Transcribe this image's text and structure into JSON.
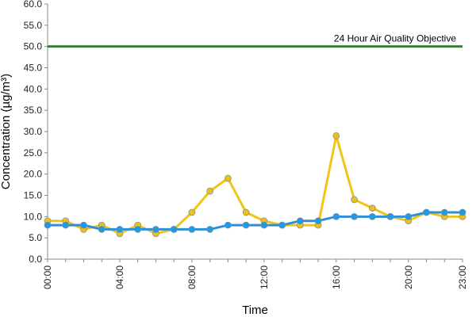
{
  "chart_data": {
    "type": "line",
    "title": "",
    "xlabel": "Time",
    "ylabel": "Concentration (µg/m³)",
    "ylim": [
      0,
      60
    ],
    "yticks": [
      "0.0",
      "5.0",
      "10.0",
      "15.0",
      "20.0",
      "25.0",
      "30.0",
      "35.0",
      "40.0",
      "45.0",
      "50.0",
      "55.0",
      "60.0"
    ],
    "x": [
      "00:00",
      "01:00",
      "02:00",
      "03:00",
      "04:00",
      "05:00",
      "06:00",
      "07:00",
      "08:00",
      "09:00",
      "10:00",
      "11:00",
      "12:00",
      "13:00",
      "14:00",
      "15:00",
      "16:00",
      "17:00",
      "18:00",
      "19:00",
      "20:00",
      "21:00",
      "22:00",
      "23:00"
    ],
    "xtick_labels": [
      "00:00",
      "04:00",
      "08:00",
      "12:00",
      "16:00",
      "20:00",
      "23:00"
    ],
    "grid": false,
    "legend": "none",
    "series": [
      {
        "color": "#f0c419",
        "marker_color": "#e8c020",
        "values": [
          9,
          9,
          7,
          8,
          6,
          8,
          6,
          7,
          11,
          16,
          19,
          11,
          9,
          8,
          8,
          8,
          29,
          14,
          12,
          10,
          9,
          11,
          10,
          10
        ]
      },
      {
        "color": "#2b8fd9",
        "marker_color": "#1e9be8",
        "values": [
          8,
          8,
          8,
          7,
          7,
          7,
          7,
          7,
          7,
          7,
          8,
          8,
          8,
          8,
          9,
          9,
          10,
          10,
          10,
          10,
          10,
          11,
          11,
          11
        ]
      }
    ],
    "reference_line": {
      "value": 50,
      "label": "24 Hour Air Quality Objective",
      "color": "#228b22"
    }
  }
}
